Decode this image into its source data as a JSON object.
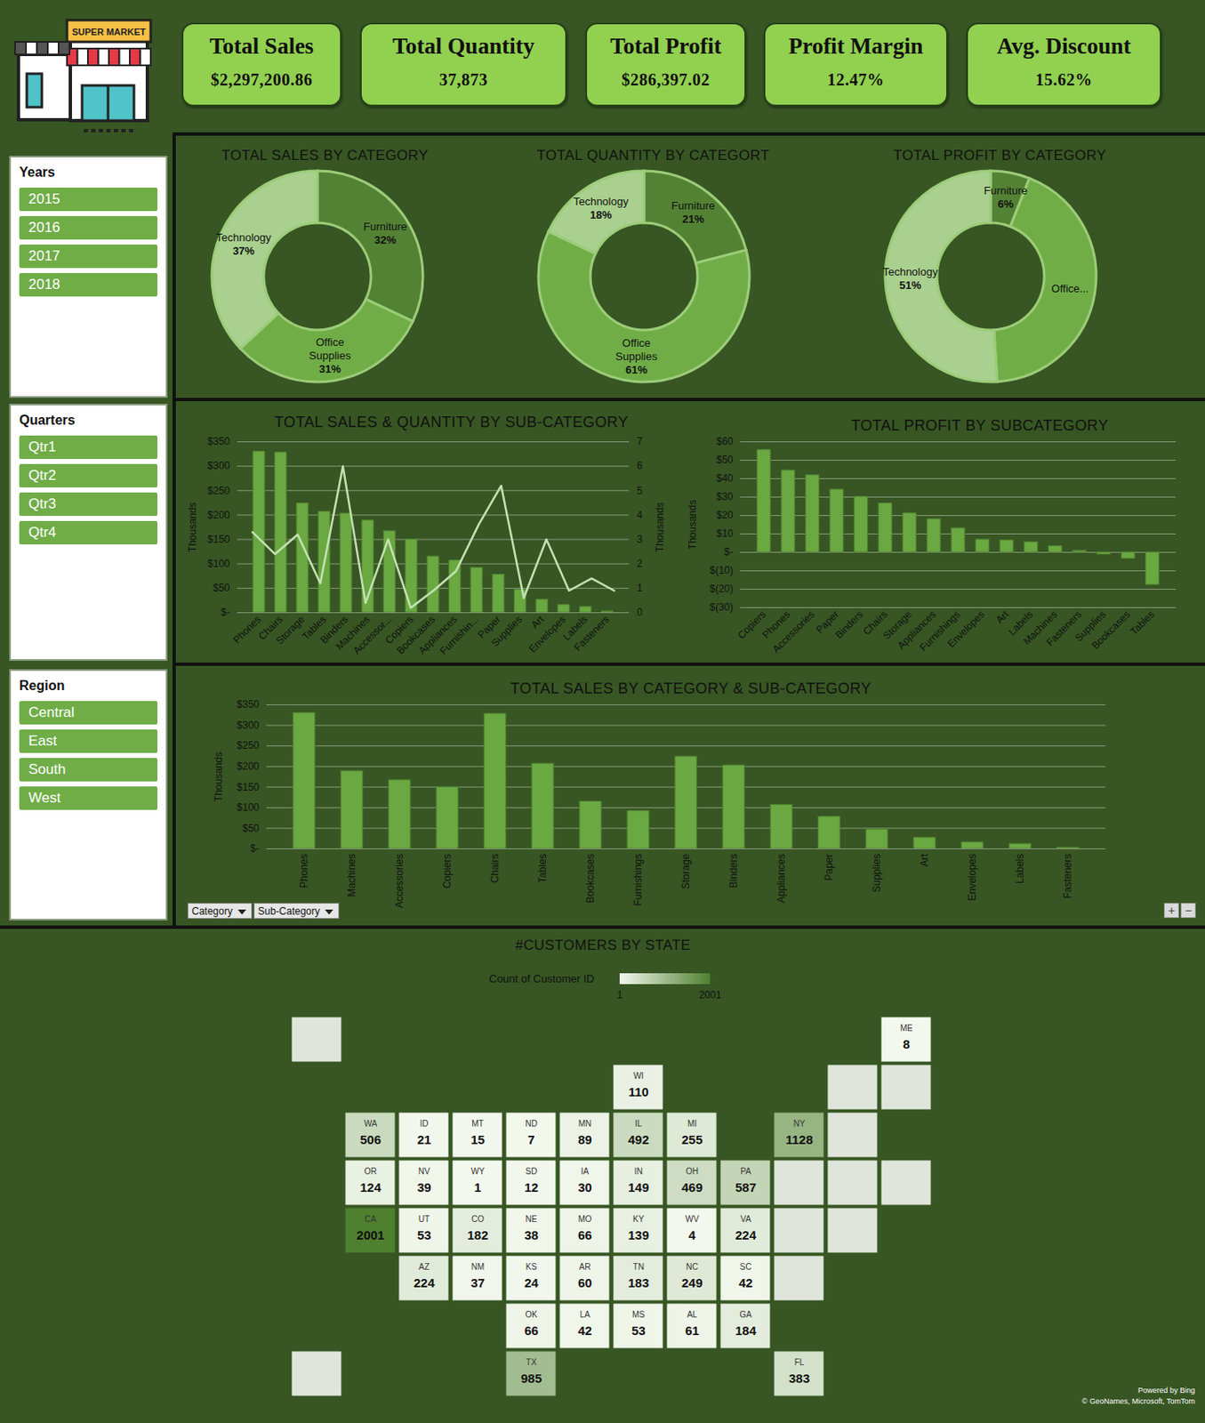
{
  "header": {
    "logo_text": "SUPER MARKET"
  },
  "kpis": [
    {
      "title": "Total Sales",
      "value": "$2,297,200.86"
    },
    {
      "title": "Total Quantity",
      "value": "37,873"
    },
    {
      "title": "Total Profit",
      "value": "$286,397.02"
    },
    {
      "title": "Profit Margin",
      "value": "12.47%"
    },
    {
      "title": "Avg. Discount",
      "value": "15.62%"
    }
  ],
  "slicers": [
    {
      "title": "Years",
      "items": [
        "2015",
        "2016",
        "2017",
        "2018"
      ]
    },
    {
      "title": "Quarters",
      "items": [
        "Qtr1",
        "Qtr2",
        "Qtr3",
        "Qtr4"
      ]
    },
    {
      "title": "Region",
      "items": [
        "Central",
        "East",
        "South",
        "West"
      ]
    }
  ],
  "chart_data": [
    {
      "type": "pie",
      "title": "TOTAL SALES BY CATEGORY",
      "categories": [
        "Furniture",
        "Office Supplies",
        "Technology"
      ],
      "values": [
        32,
        31,
        37
      ],
      "value_labels": [
        "32%",
        "31%",
        "37%"
      ],
      "colors": [
        "#548235",
        "#70ad47",
        "#a9d08e"
      ],
      "data_labels": true
    },
    {
      "type": "pie",
      "title": "TOTAL QUANTITY BY CATEGORT",
      "categories": [
        "Furniture",
        "Office Supplies",
        "Technology"
      ],
      "values": [
        21,
        61,
        18
      ],
      "value_labels": [
        "21%",
        "61%",
        "18%"
      ],
      "colors": [
        "#548235",
        "#70ad47",
        "#a9d08e"
      ],
      "data_labels": true
    },
    {
      "type": "pie",
      "title": "TOTAL PROFIT BY CATEGORY",
      "categories": [
        "Furniture",
        "Office...",
        "Technology"
      ],
      "values": [
        6,
        43,
        51
      ],
      "value_labels": [
        "6%",
        null,
        "51%"
      ],
      "colors": [
        "#548235",
        "#70ad47",
        "#a9d08e"
      ],
      "data_labels": true
    },
    {
      "type": "bar",
      "title": "TOTAL SALES & QUANTITY BY SUB-CATEGORY",
      "categories": [
        "Phones",
        "Chairs",
        "Storage",
        "Tables",
        "Binders",
        "Machines",
        "Accessor...",
        "Copiers",
        "Bookcases",
        "Appliances",
        "Furnishin...",
        "Paper",
        "Supplies",
        "Art",
        "Envelopes",
        "Labels",
        "Fasteners"
      ],
      "series": [
        {
          "type": "bar",
          "color": "#6aa842",
          "values": [
            330,
            328,
            224,
            207,
            203,
            189,
            167,
            150,
            115,
            107,
            92,
            78,
            47,
            27,
            16,
            12,
            3
          ]
        },
        {
          "type": "line",
          "axis": "y2",
          "color": "#c5e0b4",
          "values": [
            3.3,
            2.4,
            3.2,
            1.2,
            6.0,
            0.4,
            3.0,
            0.2,
            0.9,
            1.7,
            3.6,
            5.2,
            0.6,
            3.0,
            0.9,
            1.4,
            0.9
          ]
        }
      ],
      "ylabel": "Thousands",
      "y2label": "Thousands",
      "ylim": [
        0,
        350
      ],
      "yticks": [
        {
          "value": 0,
          "label": "$-"
        },
        {
          "value": 50,
          "label": "$50"
        },
        {
          "value": 100,
          "label": "$100"
        },
        {
          "value": 150,
          "label": "$150"
        },
        {
          "value": 200,
          "label": "$200"
        },
        {
          "value": 250,
          "label": "$250"
        },
        {
          "value": 300,
          "label": "$300"
        },
        {
          "value": 350,
          "label": "$350"
        }
      ],
      "y2lim": [
        0,
        7
      ],
      "y2ticks": [
        0,
        1,
        2,
        3,
        4,
        5,
        6,
        7
      ],
      "grid": true
    },
    {
      "type": "bar",
      "title": "TOTAL PROFIT BY SUBCATEGORY",
      "categories": [
        "Copiers",
        "Phones",
        "Accessories",
        "Paper",
        "Binders",
        "Chairs",
        "Storage",
        "Appliances",
        "Furnishings",
        "Envelopes",
        "Art",
        "Labels",
        "Machines",
        "Fasteners",
        "Supplies",
        "Bookcases",
        "Tables"
      ],
      "values": [
        55.6,
        44.5,
        41.9,
        34.1,
        30.2,
        26.6,
        21.3,
        18.1,
        13.1,
        6.9,
        6.5,
        5.5,
        3.4,
        0.9,
        -1.2,
        -3.5,
        -17.7
      ],
      "color": "#6aa842",
      "ylabel": "Thousands",
      "ylim": [
        -30,
        60
      ],
      "yticks": [
        {
          "value": -30,
          "label": "$(30)"
        },
        {
          "value": -20,
          "label": "$(20)"
        },
        {
          "value": -10,
          "label": "$(10)"
        },
        {
          "value": 0,
          "label": "$-"
        },
        {
          "value": 10,
          "label": "$10"
        },
        {
          "value": 20,
          "label": "$20"
        },
        {
          "value": 30,
          "label": "$30"
        },
        {
          "value": 40,
          "label": "$40"
        },
        {
          "value": 50,
          "label": "$50"
        },
        {
          "value": 60,
          "label": "$60"
        }
      ],
      "grid": true
    },
    {
      "type": "bar",
      "title": "TOTAL SALES BY CATEGORY & SUB-CATEGORY",
      "categories": [
        "Phones",
        "Machines",
        "Accessories",
        "Copiers",
        "Chairs",
        "Tables",
        "Bookcases",
        "Furnishings",
        "Storage",
        "Binders",
        "Appliances",
        "Paper",
        "Supplies",
        "Art",
        "Envelopes",
        "Labels",
        "Fasteners"
      ],
      "values": [
        330,
        189,
        167,
        150,
        328,
        207,
        115,
        92,
        224,
        203,
        107,
        78,
        47,
        27,
        16,
        12,
        3
      ],
      "color": "#6aa842",
      "ylabel": "Thousands",
      "ylim": [
        0,
        350
      ],
      "yticks": [
        {
          "value": 0,
          "label": "$-"
        },
        {
          "value": 50,
          "label": "$50"
        },
        {
          "value": 100,
          "label": "$100"
        },
        {
          "value": 150,
          "label": "$150"
        },
        {
          "value": 200,
          "label": "$200"
        },
        {
          "value": 250,
          "label": "$250"
        },
        {
          "value": 300,
          "label": "$300"
        },
        {
          "value": 350,
          "label": "$350"
        }
      ],
      "grid": true,
      "field_buttons": [
        "Category",
        "Sub-Category"
      ],
      "zoom_buttons": [
        "+",
        "−"
      ]
    },
    {
      "type": "map",
      "title": "#CUSTOMERS BY STATE",
      "colorbar": {
        "label": "Count of Customer ID",
        "range": [
          1,
          2001
        ],
        "ticks": [
          1,
          2001
        ]
      },
      "data_labels": true,
      "regions": [
        {
          "state": "WA",
          "value": 506
        },
        {
          "state": "OR",
          "value": 124
        },
        {
          "state": "CA",
          "value": 2001
        },
        {
          "state": "ID",
          "value": 21
        },
        {
          "state": "NV",
          "value": 39
        },
        {
          "state": "MT",
          "value": 15
        },
        {
          "state": "WY",
          "value": 1
        },
        {
          "state": "UT",
          "value": 53
        },
        {
          "state": "AZ",
          "value": 224
        },
        {
          "state": "CO",
          "value": 182
        },
        {
          "state": "NM",
          "value": 37
        },
        {
          "state": "ND",
          "value": 7
        },
        {
          "state": "SD",
          "value": 12
        },
        {
          "state": "NE",
          "value": 38
        },
        {
          "state": "KS",
          "value": 24
        },
        {
          "state": "OK",
          "value": 66
        },
        {
          "state": "TX",
          "value": 985
        },
        {
          "state": "MN",
          "value": 89
        },
        {
          "state": "IA",
          "value": 30
        },
        {
          "state": "MO",
          "value": 66
        },
        {
          "state": "AR",
          "value": 60
        },
        {
          "state": "LA",
          "value": 42
        },
        {
          "state": "WI",
          "value": 110
        },
        {
          "state": "IL",
          "value": 492
        },
        {
          "state": "MI",
          "value": 255
        },
        {
          "state": "IN",
          "value": 149
        },
        {
          "state": "OH",
          "value": 469
        },
        {
          "state": "KY",
          "value": 139
        },
        {
          "state": "TN",
          "value": 183
        },
        {
          "state": "MS",
          "value": 53
        },
        {
          "state": "AL",
          "value": 61
        },
        {
          "state": "GA",
          "value": 184
        },
        {
          "state": "FL",
          "value": 383
        },
        {
          "state": "SC",
          "value": 42
        },
        {
          "state": "NC",
          "value": 249
        },
        {
          "state": "VA",
          "value": 224
        },
        {
          "state": "WV",
          "value": 4
        },
        {
          "state": "PA",
          "value": 587
        },
        {
          "state": "NY",
          "value": 1128
        },
        {
          "state": "ME",
          "value": 8
        }
      ],
      "annotations": [
        "Powered by Bing",
        "© GeoNames, Microsoft, TomTom"
      ]
    }
  ]
}
